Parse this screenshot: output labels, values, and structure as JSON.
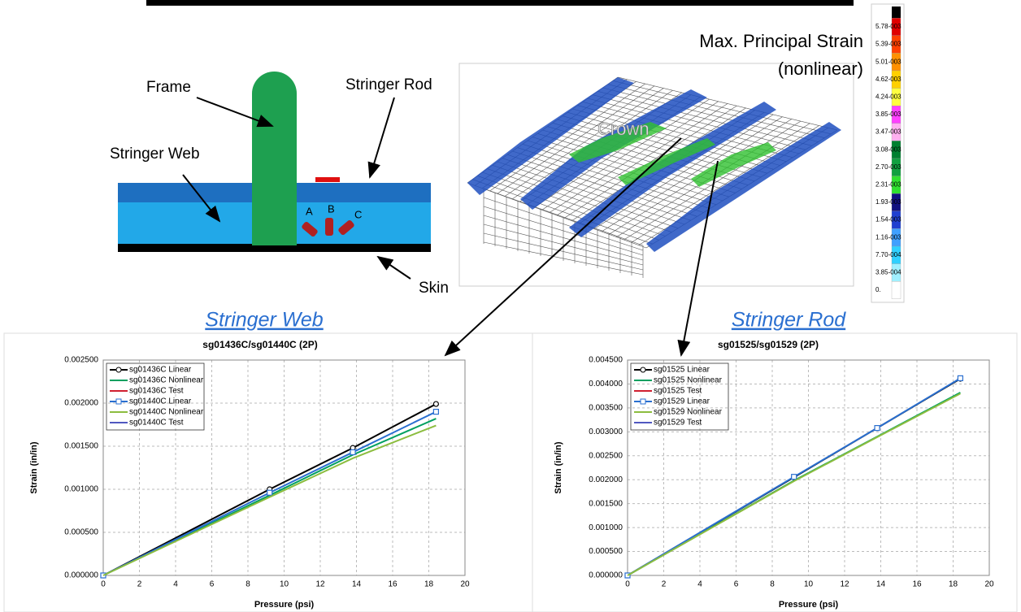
{
  "diagram": {
    "frame": "Frame",
    "stringer_rod": "Stringer Rod",
    "stringer_web": "Stringer Web",
    "skin": "Skin",
    "gauge_a": "A",
    "gauge_b": "B",
    "gauge_c": "C"
  },
  "fe_model": {
    "title": "Max. Principal Strain",
    "subtitle": "(nonlinear)",
    "region": "Crown",
    "scale_labels": [
      "5.78-003",
      "5.39-003",
      "5.01-003",
      "4.62-003",
      "4.24-003",
      "3.85-003",
      "3.47-003",
      "3.08-003",
      "2.70-003",
      "2.31-003",
      "1.93-003",
      "1.54-003",
      "1.16-003",
      "7.70-004",
      "3.85-004",
      "0."
    ],
    "scale_colors": [
      "#e00000",
      "#ff4000",
      "#ff9000",
      "#ffd000",
      "#ffff40",
      "#ff40ff",
      "#ffb0f0",
      "#008030",
      "#10a040",
      "#30e030",
      "#101080",
      "#2040d0",
      "#40a0ff",
      "#30d0ff",
      "#a0f0ff",
      "#ffffff"
    ]
  },
  "headings": [
    "Stringer Web",
    "Stringer Rod"
  ],
  "chart_data": [
    {
      "type": "line",
      "title": "sg01436C/sg01440C (2P)",
      "x_label": "Pressure (psi)",
      "y_label": "Strain (in/in)",
      "x": [
        0,
        9.2,
        13.8,
        18.4
      ],
      "series": [
        {
          "name": "sg01436C Linear",
          "color": "#000000",
          "marker": "circle",
          "values": [
            0,
            0.001,
            0.00148,
            0.00199
          ]
        },
        {
          "name": "sg01436C Nonlinear",
          "color": "#00a060",
          "marker": "none",
          "values": [
            0,
            0.00093,
            0.0014,
            0.00182
          ]
        },
        {
          "name": "sg01436C Test",
          "color": "#d02030",
          "marker": "none",
          "values": [
            null,
            null,
            null,
            null
          ]
        },
        {
          "name": "sg01440C Linear",
          "color": "#2a6fd0",
          "marker": "square",
          "values": [
            0,
            0.00096,
            0.00143,
            0.0019
          ]
        },
        {
          "name": "sg01440C Nonlinear",
          "color": "#8cbd3f",
          "marker": "none",
          "values": [
            0,
            0.00091,
            0.00136,
            0.00174
          ]
        },
        {
          "name": "sg01440C Test",
          "color": "#5058c0",
          "marker": "none",
          "values": [
            null,
            null,
            null,
            null
          ]
        }
      ],
      "xlim": [
        0,
        20
      ],
      "xticks": [
        0,
        2,
        4,
        6,
        8,
        10,
        12,
        14,
        16,
        18,
        20
      ],
      "ylim": [
        0,
        0.0025
      ],
      "yticks": [
        {
          "value": 0,
          "label": "0.000000"
        },
        {
          "value": 0.0005,
          "label": "0.000500"
        },
        {
          "value": 0.001,
          "label": "0.001000"
        },
        {
          "value": 0.0015,
          "label": "0.001500"
        },
        {
          "value": 0.002,
          "label": "0.002000"
        },
        {
          "value": 0.0025,
          "label": "0.002500"
        }
      ],
      "grid": true,
      "legend": "top-left"
    },
    {
      "type": "line",
      "title": "sg01525/sg01529 (2P)",
      "x_label": "Pressure (psi)",
      "y_label": "Strain (in/in)",
      "x": [
        0,
        9.2,
        13.8,
        18.4
      ],
      "series": [
        {
          "name": "sg01525 Linear",
          "color": "#000000",
          "marker": "circle",
          "values": [
            0,
            0.00205,
            0.00308,
            0.00411
          ]
        },
        {
          "name": "sg01525 Nonlinear",
          "color": "#00a060",
          "marker": "none",
          "values": [
            0,
            0.00198,
            0.0029,
            0.00382
          ]
        },
        {
          "name": "sg01525 Test",
          "color": "#d02030",
          "marker": "none",
          "values": [
            null,
            null,
            null,
            null
          ]
        },
        {
          "name": "sg01529 Linear",
          "color": "#2a6fd0",
          "marker": "square",
          "values": [
            0,
            0.00206,
            0.00308,
            0.00412
          ]
        },
        {
          "name": "sg01529 Nonlinear",
          "color": "#8cbd3f",
          "marker": "none",
          "values": [
            0,
            0.00197,
            0.00289,
            0.0038
          ]
        },
        {
          "name": "sg01529 Test",
          "color": "#5058c0",
          "marker": "none",
          "values": [
            null,
            null,
            null,
            null
          ]
        }
      ],
      "xlim": [
        0,
        20
      ],
      "xticks": [
        0,
        2,
        4,
        6,
        8,
        10,
        12,
        14,
        16,
        18,
        20
      ],
      "ylim": [
        0,
        0.0045
      ],
      "yticks": [
        {
          "value": 0,
          "label": "0.000000"
        },
        {
          "value": 0.0005,
          "label": "0.000500"
        },
        {
          "value": 0.001,
          "label": "0.001000"
        },
        {
          "value": 0.0015,
          "label": "0.001500"
        },
        {
          "value": 0.002,
          "label": "0.002000"
        },
        {
          "value": 0.0025,
          "label": "0.002500"
        },
        {
          "value": 0.003,
          "label": "0.003000"
        },
        {
          "value": 0.0035,
          "label": "0.003500"
        },
        {
          "value": 0.004,
          "label": "0.004000"
        },
        {
          "value": 0.0045,
          "label": "0.004500"
        }
      ],
      "grid": true,
      "legend": "top-left"
    }
  ]
}
